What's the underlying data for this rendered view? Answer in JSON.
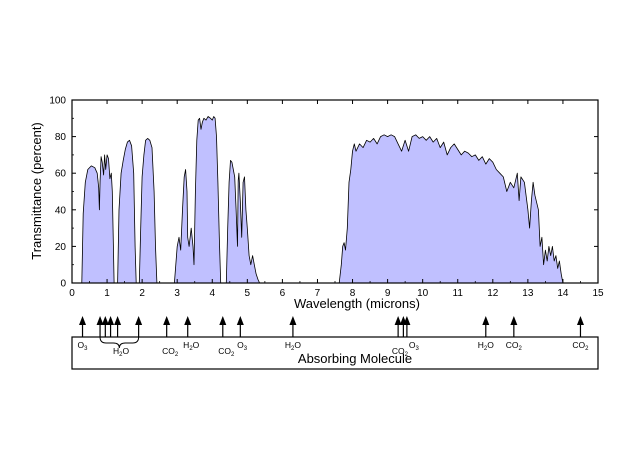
{
  "chart_data": {
    "type": "area",
    "xlabel": "Wavelength (microns)",
    "ylabel": "Transmittance (percent)",
    "xlim": [
      0,
      15
    ],
    "ylim": [
      0,
      100
    ],
    "x_ticks": [
      0,
      1,
      2,
      3,
      4,
      5,
      6,
      7,
      8,
      9,
      10,
      11,
      12,
      13,
      14,
      15
    ],
    "y_ticks": [
      0,
      20,
      40,
      60,
      80,
      100
    ],
    "fill_color": "#c0c0ff",
    "line_color": "#000000",
    "grid": false,
    "bands": [
      [
        [
          0.28,
          0
        ],
        [
          0.32,
          38
        ],
        [
          0.38,
          55
        ],
        [
          0.45,
          62
        ],
        [
          0.55,
          64
        ],
        [
          0.65,
          63
        ],
        [
          0.72,
          60
        ],
        [
          0.76,
          52
        ],
        [
          0.78,
          40
        ],
        [
          0.8,
          56
        ],
        [
          0.83,
          69
        ],
        [
          0.86,
          66
        ],
        [
          0.9,
          59
        ],
        [
          0.93,
          70
        ],
        [
          0.96,
          62
        ],
        [
          1.0,
          70
        ],
        [
          1.04,
          68
        ],
        [
          1.08,
          57
        ],
        [
          1.12,
          60
        ],
        [
          1.15,
          50
        ],
        [
          1.18,
          20
        ],
        [
          1.2,
          0
        ]
      ],
      [
        [
          1.3,
          0
        ],
        [
          1.34,
          40
        ],
        [
          1.4,
          60
        ],
        [
          1.46,
          67
        ],
        [
          1.52,
          73
        ],
        [
          1.58,
          77
        ],
        [
          1.64,
          78
        ],
        [
          1.7,
          75
        ],
        [
          1.76,
          60
        ],
        [
          1.8,
          20
        ],
        [
          1.83,
          0
        ]
      ],
      [
        [
          1.92,
          0
        ],
        [
          1.96,
          30
        ],
        [
          2.0,
          58
        ],
        [
          2.05,
          70
        ],
        [
          2.1,
          78
        ],
        [
          2.16,
          79
        ],
        [
          2.22,
          78
        ],
        [
          2.28,
          74
        ],
        [
          2.34,
          50
        ],
        [
          2.38,
          20
        ],
        [
          2.42,
          0
        ]
      ],
      [
        [
          2.92,
          0
        ],
        [
          2.96,
          10
        ],
        [
          3.0,
          20
        ],
        [
          3.05,
          25
        ],
        [
          3.1,
          18
        ],
        [
          3.15,
          40
        ],
        [
          3.2,
          58
        ],
        [
          3.24,
          62
        ],
        [
          3.28,
          50
        ],
        [
          3.3,
          25
        ],
        [
          3.34,
          20
        ],
        [
          3.4,
          30
        ],
        [
          3.45,
          20
        ],
        [
          3.48,
          10
        ],
        [
          3.52,
          50
        ],
        [
          3.56,
          78
        ],
        [
          3.6,
          89
        ],
        [
          3.64,
          90
        ],
        [
          3.68,
          84
        ],
        [
          3.72,
          88
        ],
        [
          3.76,
          90
        ],
        [
          3.82,
          89
        ],
        [
          3.88,
          91
        ],
        [
          3.95,
          90
        ],
        [
          4.0,
          89
        ],
        [
          4.04,
          91
        ],
        [
          4.08,
          90
        ],
        [
          4.12,
          80
        ],
        [
          4.16,
          55
        ],
        [
          4.2,
          25
        ],
        [
          4.24,
          0
        ]
      ],
      [
        [
          4.4,
          0
        ],
        [
          4.44,
          30
        ],
        [
          4.48,
          55
        ],
        [
          4.52,
          67
        ],
        [
          4.56,
          66
        ],
        [
          4.6,
          62
        ],
        [
          4.64,
          58
        ],
        [
          4.68,
          40
        ],
        [
          4.72,
          20
        ],
        [
          4.74,
          56
        ],
        [
          4.76,
          60
        ],
        [
          4.8,
          45
        ],
        [
          4.84,
          25
        ],
        [
          4.88,
          55
        ],
        [
          4.92,
          58
        ],
        [
          4.96,
          40
        ],
        [
          5.0,
          30
        ],
        [
          5.05,
          15
        ],
        [
          5.1,
          10
        ],
        [
          5.15,
          15
        ],
        [
          5.2,
          10
        ],
        [
          5.25,
          5
        ],
        [
          5.3,
          2
        ],
        [
          5.35,
          0
        ]
      ],
      [
        [
          7.62,
          0
        ],
        [
          7.68,
          10
        ],
        [
          7.72,
          20
        ],
        [
          7.76,
          22
        ],
        [
          7.8,
          18
        ],
        [
          7.85,
          30
        ],
        [
          7.9,
          55
        ],
        [
          7.95,
          62
        ],
        [
          8.0,
          72
        ],
        [
          8.05,
          76
        ],
        [
          8.1,
          72
        ],
        [
          8.2,
          76
        ],
        [
          8.3,
          74
        ],
        [
          8.4,
          78
        ],
        [
          8.5,
          77
        ],
        [
          8.6,
          79
        ],
        [
          8.7,
          76
        ],
        [
          8.8,
          80
        ],
        [
          8.9,
          81
        ],
        [
          9.0,
          80
        ],
        [
          9.1,
          81
        ],
        [
          9.2,
          80
        ],
        [
          9.3,
          76
        ],
        [
          9.4,
          72
        ],
        [
          9.5,
          78
        ],
        [
          9.6,
          72
        ],
        [
          9.7,
          80
        ],
        [
          9.8,
          81
        ],
        [
          9.9,
          79
        ],
        [
          10.0,
          80
        ],
        [
          10.1,
          78
        ],
        [
          10.2,
          80
        ],
        [
          10.3,
          77
        ],
        [
          10.4,
          79
        ],
        [
          10.5,
          74
        ],
        [
          10.6,
          77
        ],
        [
          10.7,
          70
        ],
        [
          10.8,
          74
        ],
        [
          10.9,
          76
        ],
        [
          11.0,
          73
        ],
        [
          11.1,
          70
        ],
        [
          11.2,
          72
        ],
        [
          11.3,
          71
        ],
        [
          11.4,
          69
        ],
        [
          11.5,
          70
        ],
        [
          11.6,
          67
        ],
        [
          11.7,
          69
        ],
        [
          11.8,
          65
        ],
        [
          11.9,
          68
        ],
        [
          12.0,
          66
        ],
        [
          12.1,
          62
        ],
        [
          12.2,
          60
        ],
        [
          12.3,
          58
        ],
        [
          12.4,
          50
        ],
        [
          12.5,
          55
        ],
        [
          12.6,
          52
        ],
        [
          12.7,
          60
        ],
        [
          12.75,
          45
        ],
        [
          12.8,
          58
        ],
        [
          12.9,
          55
        ],
        [
          13.0,
          40
        ],
        [
          13.05,
          30
        ],
        [
          13.1,
          45
        ],
        [
          13.15,
          55
        ],
        [
          13.2,
          48
        ],
        [
          13.3,
          40
        ],
        [
          13.35,
          20
        ],
        [
          13.4,
          25
        ],
        [
          13.45,
          10
        ],
        [
          13.5,
          18
        ],
        [
          13.55,
          12
        ],
        [
          13.6,
          20
        ],
        [
          13.65,
          15
        ],
        [
          13.7,
          20
        ],
        [
          13.75,
          12
        ],
        [
          13.8,
          15
        ],
        [
          13.85,
          8
        ],
        [
          13.9,
          12
        ],
        [
          13.95,
          5
        ],
        [
          14.0,
          0
        ]
      ]
    ]
  },
  "molecules": {
    "title": "Absorbing Molecule",
    "arrows": [
      0.3,
      0.8,
      0.95,
      1.1,
      1.3,
      1.9,
      2.7,
      3.3,
      4.3,
      4.8,
      6.3,
      9.3,
      9.45,
      9.55,
      11.8,
      12.6,
      14.5
    ],
    "labels": [
      {
        "x": 0.3,
        "base": "O",
        "sub": "3",
        "row": 0
      },
      {
        "x": 1.4,
        "base": "H",
        "sub": "2",
        "post": "O",
        "row": 1
      },
      {
        "x": 2.8,
        "base": "CO",
        "sub": "2",
        "row": 1
      },
      {
        "x": 3.4,
        "base": "H",
        "sub": "2",
        "post": "O",
        "row": 0
      },
      {
        "x": 4.4,
        "base": "CO",
        "sub": "2",
        "row": 1
      },
      {
        "x": 4.85,
        "base": "O",
        "sub": "3",
        "row": 0
      },
      {
        "x": 6.3,
        "base": "H",
        "sub": "2",
        "post": "O",
        "row": 0
      },
      {
        "x": 9.35,
        "base": "CO",
        "sub": "2",
        "row": 1
      },
      {
        "x": 9.75,
        "base": "O",
        "sub": "3",
        "row": 0
      },
      {
        "x": 11.8,
        "base": "H",
        "sub": "2",
        "post": "O",
        "row": 0
      },
      {
        "x": 12.6,
        "base": "CO",
        "sub": "2",
        "row": 0
      },
      {
        "x": 14.5,
        "base": "CO",
        "sub": "2",
        "row": 0
      }
    ],
    "brace": [
      0.8,
      1.9
    ]
  }
}
